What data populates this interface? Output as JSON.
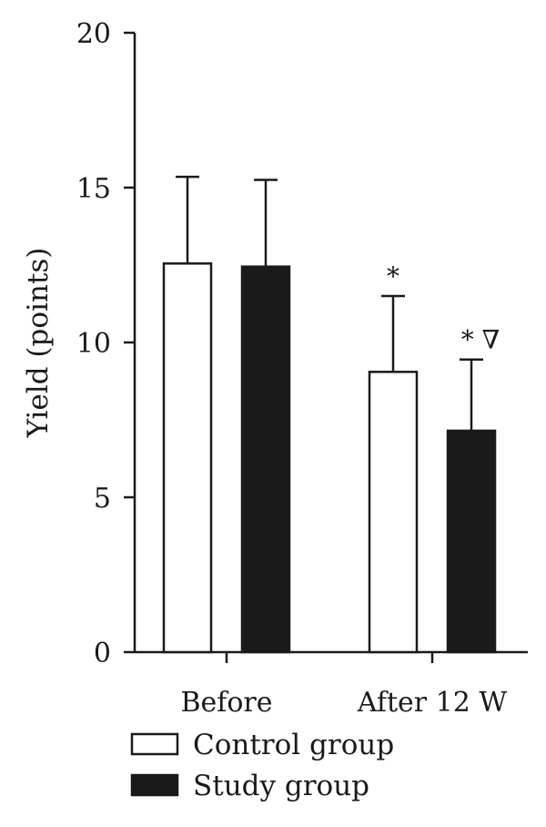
{
  "chart_data": {
    "type": "bar",
    "ylabel": "Yield (points)",
    "ylim": [
      0,
      20
    ],
    "yticks": [
      0,
      5,
      10,
      15,
      20
    ],
    "categories": [
      "Before",
      "After 12 W"
    ],
    "series": [
      {
        "name": "Control group",
        "values": [
          12.55,
          9.05
        ],
        "errors": [
          2.8,
          2.45
        ],
        "fill": "#ffffff"
      },
      {
        "name": "Study group",
        "values": [
          12.45,
          7.15
        ],
        "errors": [
          2.8,
          2.3
        ],
        "fill": "#1a1a1a"
      }
    ],
    "annotations": [
      {
        "series": 0,
        "category": 1,
        "text": "*"
      },
      {
        "series": 1,
        "category": 1,
        "text": "* ∇"
      }
    ],
    "legend_position": "bottom-left",
    "grid": false
  }
}
